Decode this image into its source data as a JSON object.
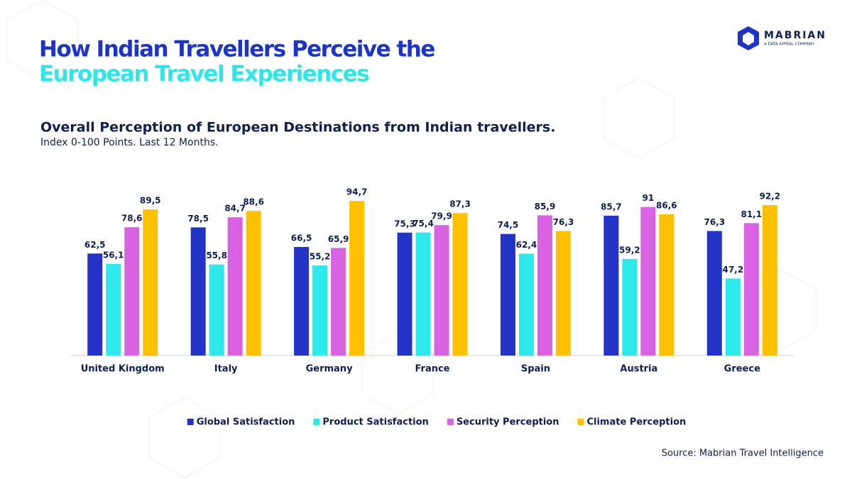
{
  "brand": {
    "name": "MABRIAN",
    "tagline": "A DATA APPEAL COMPANY"
  },
  "chart_data": {
    "type": "bar",
    "title": [
      "How Indian Travellers Perceive the",
      "European Travel Experiences"
    ],
    "subtitle": "Overall Perception of European Destinations from Indian travellers.",
    "note": "Index 0-100 Points. Last 12 Months.",
    "source": "Source: Mabrian Travel Intelligence",
    "categories": [
      "United Kingdom",
      "Italy",
      "Germany",
      "France",
      "Spain",
      "Austria",
      "Greece"
    ],
    "ylim": [
      0,
      100
    ],
    "legend": "bottom",
    "series": [
      {
        "name": "Global Satisfaction",
        "color": "#2333c6",
        "values": [
          62.5,
          78.5,
          66.5,
          75.3,
          74.5,
          85.7,
          76.3
        ],
        "value_labels": [
          "62,5",
          "78,5",
          "66,5",
          "75,3",
          "74,5",
          "85,7",
          "76,3"
        ]
      },
      {
        "name": "Product Satisfaction",
        "color": "#2ee9ec",
        "values": [
          56.1,
          55.8,
          55.2,
          75.4,
          62.4,
          59.2,
          47.2
        ],
        "value_labels": [
          "56,1",
          "55,8",
          "55,2",
          "75,4",
          "62,4",
          "59,2",
          "47,2"
        ]
      },
      {
        "name": "Security Perception",
        "color": "#d862e2",
        "values": [
          78.6,
          84.7,
          65.9,
          79.9,
          85.9,
          91,
          81.1
        ],
        "value_labels": [
          "78,6",
          "84,7",
          "65,9",
          "79,9",
          "85,9",
          "91",
          "81,1"
        ]
      },
      {
        "name": "Climate Perception",
        "color": "#ffc000",
        "values": [
          89.5,
          88.6,
          94.7,
          87.3,
          76.3,
          86.6,
          92.2
        ],
        "value_labels": [
          "89,5",
          "88,6",
          "94,7",
          "87,3",
          "76,3",
          "86,6",
          "92,2"
        ]
      }
    ]
  }
}
